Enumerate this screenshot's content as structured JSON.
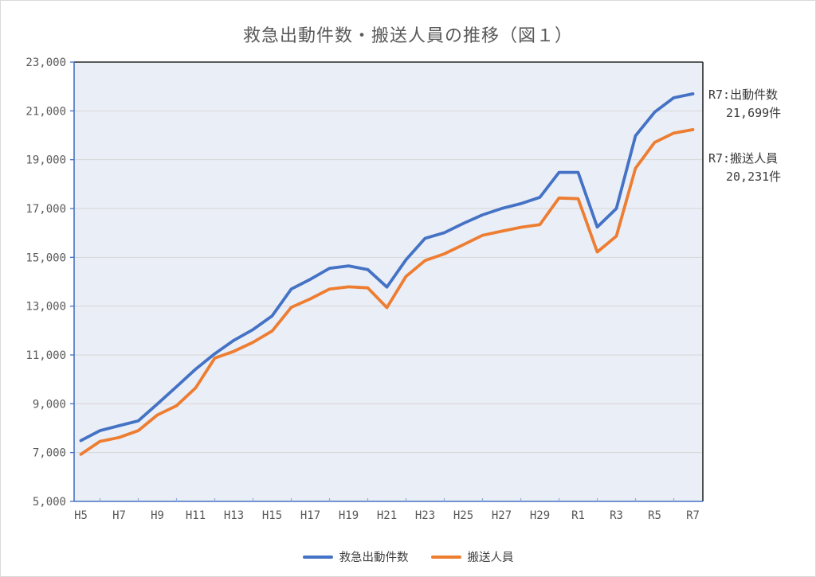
{
  "page": {
    "title": "救急出動件数・搬送人員の推移（図１）"
  },
  "chart_data": {
    "type": "line",
    "title": "救急出動件数・搬送人員の推移（図１）",
    "categories": [
      "H5",
      "H6",
      "H7",
      "H8",
      "H9",
      "H10",
      "H11",
      "H12",
      "H13",
      "H14",
      "H15",
      "H16",
      "H17",
      "H18",
      "H19",
      "H20",
      "H21",
      "H22",
      "H23",
      "H24",
      "H25",
      "H26",
      "H27",
      "H28",
      "H29",
      "H30",
      "R1",
      "R2",
      "R3",
      "R4",
      "R5",
      "R6",
      "R7"
    ],
    "x_labels_shown": [
      "H5",
      "H7",
      "H9",
      "H11",
      "H13",
      "H15",
      "H17",
      "H19",
      "H21",
      "H23",
      "H25",
      "H27",
      "H29",
      "R1",
      "R3",
      "R5",
      "R7"
    ],
    "series": [
      {
        "id": "dispatch",
        "name": "救急出動件数",
        "color": "#4472C4",
        "values": [
          7490,
          7900,
          8100,
          8300,
          8990,
          9700,
          10420,
          11050,
          11600,
          12040,
          12600,
          13700,
          14100,
          14550,
          14650,
          14500,
          13780,
          14900,
          15780,
          16010,
          16390,
          16740,
          17000,
          17200,
          17460,
          18480,
          18480,
          16240,
          17000,
          19980,
          20950,
          21540,
          21699
        ]
      },
      {
        "id": "transported",
        "name": "搬送人員",
        "color": "#ED7D31",
        "values": [
          6930,
          7460,
          7620,
          7900,
          8540,
          8920,
          9650,
          10870,
          11150,
          11520,
          11980,
          12950,
          13300,
          13700,
          13790,
          13750,
          12940,
          14220,
          14870,
          15140,
          15520,
          15900,
          16070,
          16230,
          16340,
          17430,
          17400,
          15220,
          15870,
          18650,
          19710,
          20090,
          20231
        ]
      }
    ],
    "ylim": [
      5000,
      23000
    ],
    "ytick_step": 2000,
    "y_tick_labels": [
      "5,000",
      "7,000",
      "9,000",
      "11,000",
      "13,000",
      "15,000",
      "17,000",
      "19,000",
      "21,000",
      "23,000"
    ],
    "grid": true,
    "legend_position": "bottom",
    "plot_bg_color": "#EAEEF7",
    "gridline_color": "#D6D6D6",
    "axis_line_color": "#4472C4",
    "border_color": "#262626",
    "annotations": [
      {
        "label": "R7:出動件数",
        "value": "21,699件"
      },
      {
        "label": "R7:搬送人員",
        "value": "20,231件"
      }
    ]
  }
}
